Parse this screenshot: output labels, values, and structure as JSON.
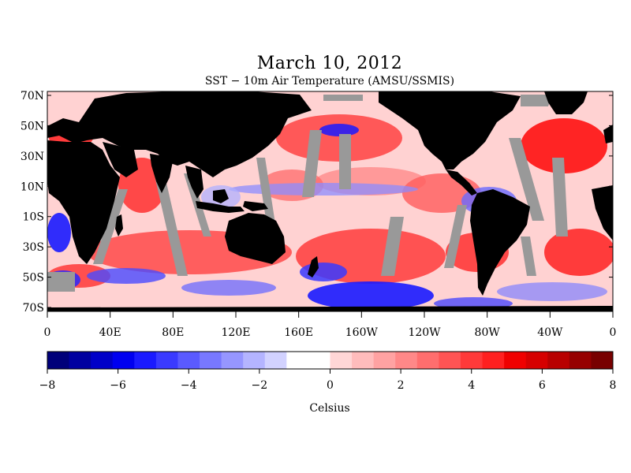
{
  "title": "March 10, 2012",
  "subtitle": "SST − 10m Air Temperature (AMSU/SSMIS)",
  "lat_labels": [
    "70N",
    "50N",
    "30N",
    "10N",
    "10S",
    "30S",
    "50S",
    "70S"
  ],
  "lon_labels": [
    "0",
    "40E",
    "80E",
    "120E",
    "160E",
    "160W",
    "120W",
    "80W",
    "40W",
    "0"
  ],
  "colorbar": {
    "unit_label": "Celsius",
    "tick_labels": [
      "−8",
      "−6",
      "−4",
      "−2",
      "0",
      "2",
      "4",
      "6",
      "8"
    ],
    "range": [
      -8,
      8
    ],
    "colors": [
      "#00007a",
      "#0000a0",
      "#0000c8",
      "#0000f0",
      "#1a1aff",
      "#3a3aff",
      "#5a5aff",
      "#7878ff",
      "#9696ff",
      "#b4b4ff",
      "#d2d2ff",
      "#ffffff",
      "#ffffff",
      "#ffd6d6",
      "#ffbcbc",
      "#ffa2a2",
      "#ff8888",
      "#ff6e6e",
      "#ff5454",
      "#ff3a3a",
      "#ff2020",
      "#f00000",
      "#d60000",
      "#b80000",
      "#960000",
      "#780000"
    ]
  },
  "legend_colors": {
    "land": "#000000",
    "missing": "#999999"
  }
}
